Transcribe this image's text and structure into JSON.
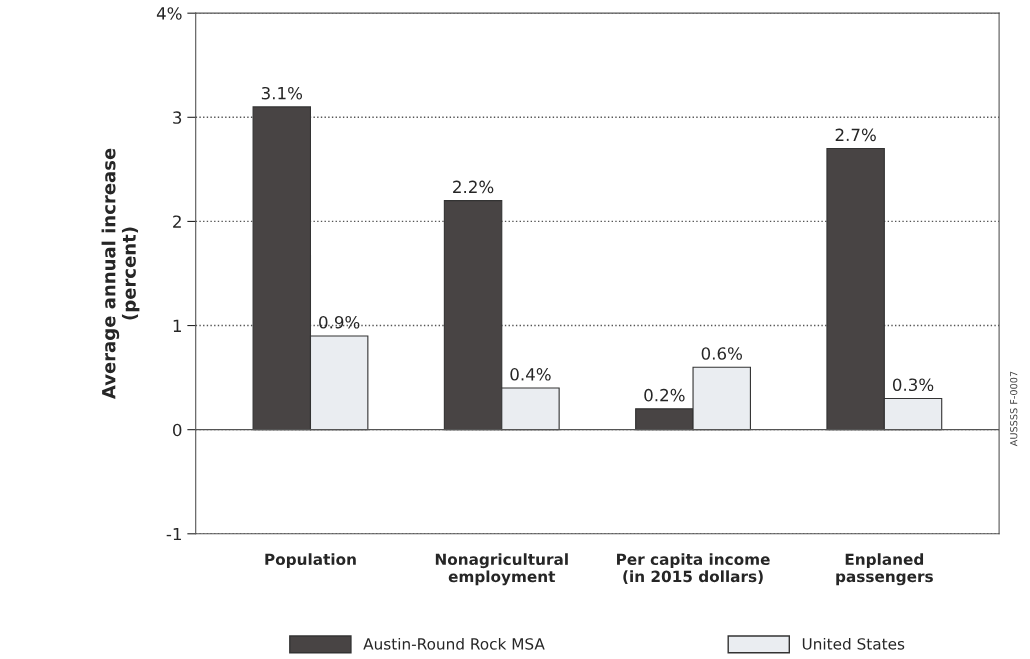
{
  "chart_data": {
    "type": "bar",
    "ylabel": "Average annual increase\n(percent)",
    "categories": [
      "Population",
      "Nonagricultural\nemployment",
      "Per capita income\n(in 2015 dollars)",
      "Enplaned\npassengers"
    ],
    "series": [
      {
        "name": "Austin-Round Rock MSA",
        "color": "#484444",
        "values": [
          3.1,
          2.2,
          0.2,
          2.7
        ],
        "value_labels": [
          "3.1%",
          "2.2%",
          "0.2%",
          "2.7%"
        ]
      },
      {
        "name": "United States",
        "color": "#eaedf1",
        "values": [
          0.9,
          0.4,
          0.6,
          0.3
        ],
        "value_labels": [
          "0.9%",
          "0.4%",
          "0.6%",
          "0.3%"
        ]
      }
    ],
    "ylim": [
      -1,
      4
    ],
    "yticks": [
      -1,
      0,
      1,
      2,
      3,
      {
        "value": 4,
        "label": "4%"
      }
    ],
    "ref_lines": [
      {
        "axis": "y",
        "value": 0,
        "color": "#555555",
        "line_style": "solid"
      }
    ],
    "grid": "y",
    "legend": "bottom",
    "annotations": [
      "AUSSSS F-0007"
    ]
  }
}
